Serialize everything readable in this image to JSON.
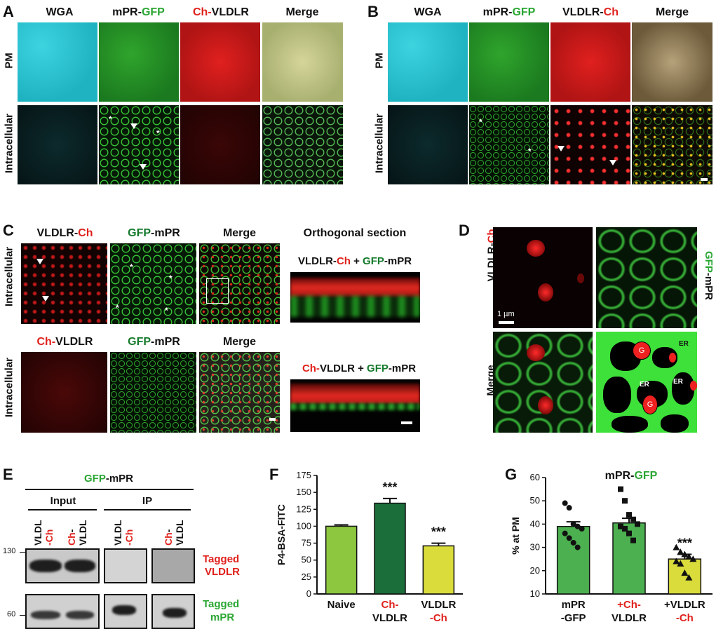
{
  "panel_a": {
    "letter": "A",
    "col1": "WGA",
    "col2_pre": "mPR-",
    "col2_post": "GFP",
    "col3_pre": "Ch-",
    "col3_post": "VLDLR",
    "col4": "Merge",
    "row1": "PM",
    "row2": "Intracellular"
  },
  "panel_b": {
    "letter": "B",
    "col1": "WGA",
    "col2_pre": "mPR-",
    "col2_post": "GFP",
    "col3_pre": "VLDLR-",
    "col3_post": "Ch",
    "col4": "Merge",
    "row1": "PM",
    "row2": "Intracellular"
  },
  "panel_c": {
    "letter": "C",
    "r1c1_pre": "VLDLR-",
    "r1c1_post": "Ch",
    "r1c2_pre": "GFP",
    "r1c2_post": "-mPR",
    "r1c3": "Merge",
    "ortho_title": "Orthogonal section",
    "ortho1_a": "VLDLR-",
    "ortho1_b": "Ch",
    "ortho1_c": " + ",
    "ortho1_d": "GFP",
    "ortho1_e": "-mPR",
    "r2c1_pre": "Ch-",
    "r2c1_post": "VLDLR",
    "r2c2_pre": "GFP",
    "r2c2_post": "-mPR",
    "r2c3": "Merge",
    "ortho2_a": "Ch-",
    "ortho2_b": "VLDLR",
    "ortho2_c": " + ",
    "ortho2_d": "GFP",
    "ortho2_e": "-mPR",
    "row_label": "Intracellular"
  },
  "panel_d": {
    "letter": "D",
    "left_pre": "VLDLR-",
    "left_post": "Ch",
    "right_pre": "GFP",
    "right_post": "-mPR",
    "merge": "Merge",
    "scale": "1 µm",
    "g_label": "G",
    "er_label": "ER"
  },
  "panel_e": {
    "letter": "E",
    "title_pre": "GFP",
    "title_post": "-mPR",
    "input": "Input",
    "ip": "IP",
    "lane_a1": "VLDL",
    "lane_a2": "-Ch",
    "lane_b1": "Ch",
    "lane_b2": "-",
    "lane_b3": "VLDL",
    "mw_130": "130",
    "mw_60": "60",
    "tagged1": "Tagged",
    "tagged1b": "VLDLR",
    "tagged2": "Tagged",
    "tagged2b": "mPR"
  },
  "panel_f": {
    "letter": "F"
  },
  "panel_g": {
    "letter": "G",
    "title_pre": "mPR-",
    "title_post": "GFP"
  },
  "colors": {
    "red": "#e0201b",
    "green": "#2aa632",
    "dark_green": "#157a2c",
    "bar_light_green": "#8dc63f",
    "bar_dark_green": "#1b6d3a",
    "bar_yellow": "#d9dc3b",
    "bar_medium_green": "#4cb050"
  },
  "chart_data": [
    {
      "type": "bar",
      "panel": "F",
      "ylabel": "P4-BSA-FITC",
      "ylim": [
        0,
        175
      ],
      "yticks": [
        0,
        25,
        50,
        75,
        100,
        125,
        150,
        175
      ],
      "categories": [
        {
          "l1": "Naive",
          "l2": "",
          "c1": "#111111",
          "c2": "#111111"
        },
        {
          "l1": "Ch-",
          "l2": "VLDLR",
          "c1": "#e0201b",
          "c2": "#111111"
        },
        {
          "l1": "VLDLR",
          "l2": "-Ch",
          "c1": "#111111",
          "c2": "#e0201b"
        }
      ],
      "values": [
        100,
        134,
        71
      ],
      "errors": [
        2,
        7,
        4
      ],
      "significance": [
        "",
        "***",
        "***"
      ],
      "bar_colors": [
        "#8dc63f",
        "#1b6d3a",
        "#d9dc3b"
      ]
    },
    {
      "type": "bar",
      "panel": "G",
      "title": "mPR-GFP",
      "ylabel": "% at PM",
      "ylim": [
        10,
        60
      ],
      "yticks": [
        10,
        20,
        30,
        40,
        50,
        60
      ],
      "categories": [
        {
          "l1": "mPR",
          "l2": "-GFP",
          "c1": "#111111",
          "c2": "#111111"
        },
        {
          "l1": "+Ch-",
          "l2": "VLDLR",
          "c1": "#e0201b",
          "c2": "#111111"
        },
        {
          "l1": "+VLDLR",
          "l2": "-Ch",
          "c1": "#111111",
          "c2": "#e0201b"
        }
      ],
      "values": [
        39,
        40.5,
        25
      ],
      "errors": [
        2,
        2,
        2
      ],
      "significance": [
        "",
        "",
        "***"
      ],
      "bar_colors": [
        "#4cb050",
        "#4cb050",
        "#d9dc3b"
      ],
      "points": [
        [
          49,
          47,
          40,
          39,
          38,
          36,
          34,
          32,
          30
        ],
        [
          55,
          50,
          44,
          42,
          40,
          39,
          38,
          36,
          33
        ],
        [
          30,
          28,
          27,
          26,
          25,
          24,
          23,
          19,
          17
        ]
      ],
      "markers": [
        "circle",
        "square",
        "triangle"
      ]
    }
  ]
}
